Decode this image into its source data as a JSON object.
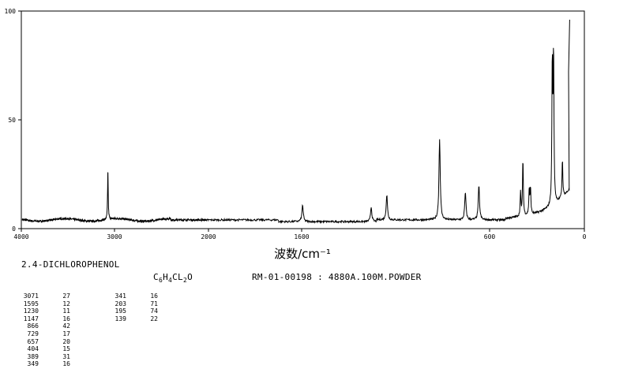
{
  "chart_data": {
    "type": "line",
    "title": "",
    "xlabel": "波数/cm⁻¹",
    "ylabel": "",
    "xlim": [
      4000,
      0
    ],
    "ylim": [
      0,
      100
    ],
    "x_ticks": [
      {
        "value": 4000,
        "label": "4000"
      },
      {
        "value": 3000,
        "label": "3000"
      },
      {
        "value": 2000,
        "label": "2000"
      },
      {
        "value": 1600,
        "label": "1600"
      },
      {
        "value": 600,
        "label": "600"
      },
      {
        "value": 0,
        "label": "0"
      }
    ],
    "y_ticks": [
      {
        "value": 0,
        "label": "0"
      },
      {
        "value": 50,
        "label": "50"
      },
      {
        "value": 100,
        "label": "100"
      }
    ],
    "grid": false,
    "line_color": "#000000",
    "baseline": 4,
    "peaks": [
      {
        "x": 3071,
        "y": 27
      },
      {
        "x": 1595,
        "y": 12
      },
      {
        "x": 1230,
        "y": 11
      },
      {
        "x": 1147,
        "y": 16
      },
      {
        "x": 866,
        "y": 42
      },
      {
        "x": 729,
        "y": 17
      },
      {
        "x": 657,
        "y": 20
      },
      {
        "x": 404,
        "y": 15
      },
      {
        "x": 389,
        "y": 31
      },
      {
        "x": 349,
        "y": 16
      },
      {
        "x": 341,
        "y": 16
      },
      {
        "x": 203,
        "y": 71
      },
      {
        "x": 195,
        "y": 74
      },
      {
        "x": 139,
        "y": 22
      }
    ]
  },
  "info": {
    "compound_name": "2.4-DICHLOROPHENOL",
    "formula_parts": [
      "C",
      "6",
      "H",
      "4",
      "CL",
      "2",
      "O"
    ],
    "record_id": "RM-01-00198 : 4880A.100M.POWDER"
  },
  "peak_table": {
    "column1": [
      {
        "wavenumber": "3071",
        "intensity": "27"
      },
      {
        "wavenumber": "1595",
        "intensity": "12"
      },
      {
        "wavenumber": "1230",
        "intensity": "11"
      },
      {
        "wavenumber": "1147",
        "intensity": "16"
      },
      {
        "wavenumber": "866",
        "intensity": "42"
      },
      {
        "wavenumber": "729",
        "intensity": "17"
      },
      {
        "wavenumber": "657",
        "intensity": "20"
      },
      {
        "wavenumber": "404",
        "intensity": "15"
      },
      {
        "wavenumber": "389",
        "intensity": "31"
      },
      {
        "wavenumber": "349",
        "intensity": "16"
      }
    ],
    "column2": [
      {
        "wavenumber": "341",
        "intensity": "16"
      },
      {
        "wavenumber": "203",
        "intensity": "71"
      },
      {
        "wavenumber": "195",
        "intensity": "74"
      },
      {
        "wavenumber": "139",
        "intensity": "22"
      }
    ]
  }
}
